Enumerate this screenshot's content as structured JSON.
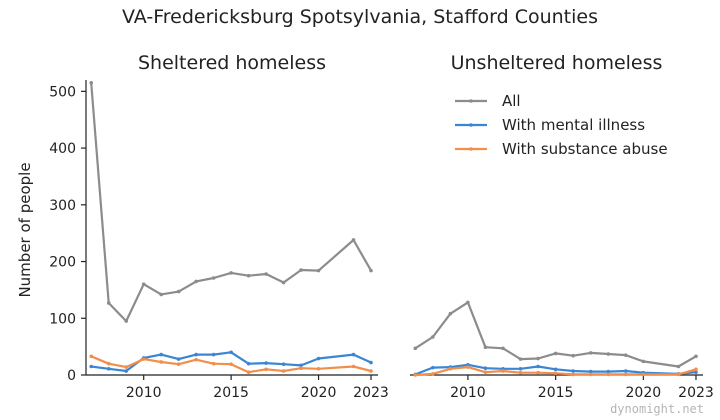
{
  "chart_data": {
    "type": "line",
    "title": "VA-Fredericksburg Spotsylvania, Stafford Counties",
    "ylabel": "Number of people",
    "watermark": "dynomight.net",
    "ylim": [
      0,
      520
    ],
    "yticks": [
      0,
      100,
      200,
      300,
      400,
      500
    ],
    "xlim": [
      2006.7,
      2023.4
    ],
    "xticks": [
      2010,
      2015,
      2020,
      2023
    ],
    "legend_position": "top-right of second panel",
    "colors": {
      "All": "#8c8c8c",
      "With mental illness": "#3a86d4",
      "With substance abuse": "#f28e4c"
    },
    "panels": [
      {
        "title": "Sheltered homeless",
        "x": [
          2007,
          2008,
          2009,
          2010,
          2011,
          2012,
          2013,
          2014,
          2015,
          2016,
          2017,
          2018,
          2019,
          2020,
          2022,
          2023
        ],
        "series": [
          {
            "name": "All",
            "values": [
              515,
              127,
              95,
              160,
              142,
              147,
              165,
              171,
              180,
              175,
              178,
              163,
              185,
              184,
              238,
              184
            ]
          },
          {
            "name": "With mental illness",
            "values": [
              15,
              11,
              7,
              30,
              36,
              28,
              36,
              36,
              40,
              20,
              21,
              19,
              17,
              29,
              36,
              22
            ]
          },
          {
            "name": "With substance abuse",
            "values": [
              33,
              20,
              14,
              28,
              23,
              19,
              27,
              20,
              19,
              5,
              10,
              7,
              12,
              11,
              15,
              7
            ]
          }
        ]
      },
      {
        "title": "Unsheltered homeless",
        "x": [
          2007,
          2008,
          2009,
          2010,
          2011,
          2012,
          2013,
          2014,
          2015,
          2016,
          2017,
          2018,
          2019,
          2020,
          2022,
          2023
        ],
        "series": [
          {
            "name": "All",
            "values": [
              47,
              67,
              108,
              128,
              49,
              47,
              28,
              29,
              38,
              34,
              39,
              37,
              35,
              24,
              15,
              33
            ]
          },
          {
            "name": "With mental illness",
            "values": [
              1,
              13,
              14,
              18,
              12,
              11,
              11,
              15,
              10,
              7,
              6,
              6,
              7,
              4,
              2,
              5
            ]
          },
          {
            "name": "With substance abuse",
            "values": [
              0,
              2,
              11,
              14,
              5,
              7,
              4,
              4,
              3,
              1,
              1,
              1,
              1,
              1,
              1,
              10
            ]
          }
        ]
      }
    ]
  }
}
